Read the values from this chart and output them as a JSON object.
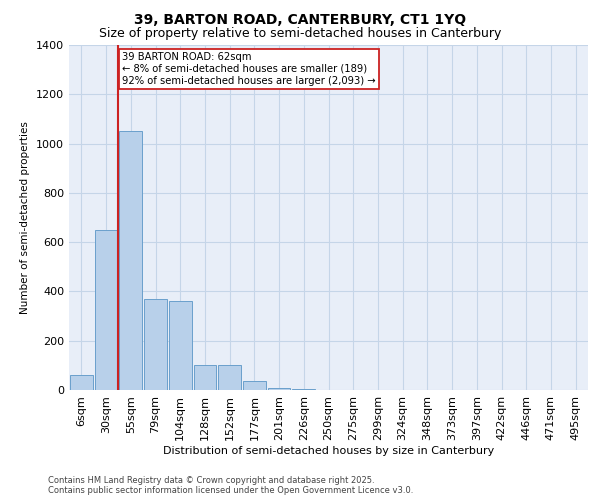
{
  "title_line1": "39, BARTON ROAD, CANTERBURY, CT1 1YQ",
  "title_line2": "Size of property relative to semi-detached houses in Canterbury",
  "xlabel": "Distribution of semi-detached houses by size in Canterbury",
  "ylabel": "Number of semi-detached properties",
  "footnote1": "Contains HM Land Registry data © Crown copyright and database right 2025.",
  "footnote2": "Contains public sector information licensed under the Open Government Licence v3.0.",
  "annotation_title": "39 BARTON ROAD: 62sqm",
  "annotation_line2": "← 8% of semi-detached houses are smaller (189)",
  "annotation_line3": "92% of semi-detached houses are larger (2,093) →",
  "categories": [
    "6sqm",
    "30sqm",
    "55sqm",
    "79sqm",
    "104sqm",
    "128sqm",
    "152sqm",
    "177sqm",
    "201sqm",
    "226sqm",
    "250sqm",
    "275sqm",
    "299sqm",
    "324sqm",
    "348sqm",
    "373sqm",
    "397sqm",
    "422sqm",
    "446sqm",
    "471sqm",
    "495sqm"
  ],
  "values": [
    60,
    650,
    1050,
    370,
    360,
    100,
    100,
    35,
    10,
    5,
    0,
    0,
    0,
    0,
    0,
    0,
    0,
    0,
    0,
    0,
    0
  ],
  "bar_color": "#b8d0ea",
  "bar_edge_color": "#6aa0cc",
  "vline_color": "#cc2222",
  "vline_x_index": 2,
  "grid_color": "#c5d5e8",
  "bg_color": "#e8eef8",
  "ylim": [
    0,
    1400
  ],
  "yticks": [
    0,
    200,
    400,
    600,
    800,
    1000,
    1200,
    1400
  ],
  "tick_fontsize": 8,
  "xlabel_fontsize": 8,
  "ylabel_fontsize": 7.5,
  "title1_fontsize": 10,
  "title2_fontsize": 9,
  "footnote_fontsize": 6
}
